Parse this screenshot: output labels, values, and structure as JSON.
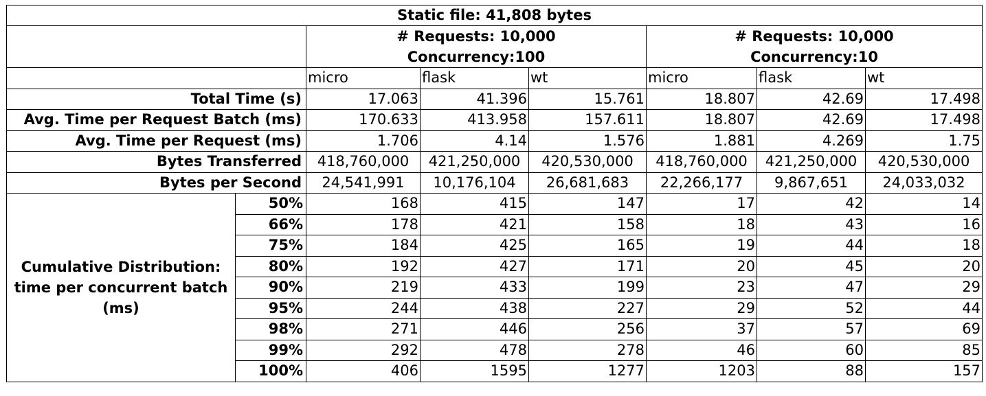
{
  "chart_data": {
    "type": "table",
    "title": "Static file: 41,808 bytes",
    "groups": [
      {
        "line1": "# Requests: 10,000",
        "line2": "Concurrency:100"
      },
      {
        "line1": "# Requests: 10,000",
        "line2": "Concurrency:10"
      }
    ],
    "columns": [
      "micro",
      "flask",
      "wt",
      "micro",
      "flask",
      "wt"
    ],
    "rows": [
      {
        "label": "Total Time (s)",
        "values": [
          "17.063",
          "41.396",
          "15.761",
          "18.807",
          "42.69",
          "17.498"
        ]
      },
      {
        "label": "Avg. Time per Request Batch (ms)",
        "values": [
          "170.633",
          "413.958",
          "157.611",
          "18.807",
          "42.69",
          "17.498"
        ]
      },
      {
        "label": "Avg. Time per Request (ms)",
        "values": [
          "1.706",
          "4.14",
          "1.576",
          "1.881",
          "4.269",
          "1.75"
        ]
      },
      {
        "label": "Bytes Transferred",
        "values": [
          "418,760,000",
          "421,250,000",
          "420,530,000",
          "418,760,000",
          "421,250,000",
          "420,530,000"
        ]
      },
      {
        "label": "Bytes per Second",
        "values": [
          "24,541,991",
          "10,176,104",
          "26,681,683",
          "22,266,177",
          "9,867,651",
          "24,033,032"
        ]
      }
    ],
    "distribution": {
      "label": "Cumulative Distribution: time per concurrent batch (ms)",
      "rows": [
        {
          "pct": "50%",
          "values": [
            "168",
            "415",
            "147",
            "17",
            "42",
            "14"
          ]
        },
        {
          "pct": "66%",
          "values": [
            "178",
            "421",
            "158",
            "18",
            "43",
            "16"
          ]
        },
        {
          "pct": "75%",
          "values": [
            "184",
            "425",
            "165",
            "19",
            "44",
            "18"
          ]
        },
        {
          "pct": "80%",
          "values": [
            "192",
            "427",
            "171",
            "20",
            "45",
            "20"
          ]
        },
        {
          "pct": "90%",
          "values": [
            "219",
            "433",
            "199",
            "23",
            "47",
            "29"
          ]
        },
        {
          "pct": "95%",
          "values": [
            "244",
            "438",
            "227",
            "29",
            "52",
            "44"
          ]
        },
        {
          "pct": "98%",
          "values": [
            "271",
            "446",
            "256",
            "37",
            "57",
            "69"
          ]
        },
        {
          "pct": "99%",
          "values": [
            "292",
            "478",
            "278",
            "46",
            "60",
            "85"
          ]
        },
        {
          "pct": "100%",
          "values": [
            "406",
            "1595",
            "1277",
            "1203",
            "88",
            "157"
          ]
        }
      ]
    }
  }
}
